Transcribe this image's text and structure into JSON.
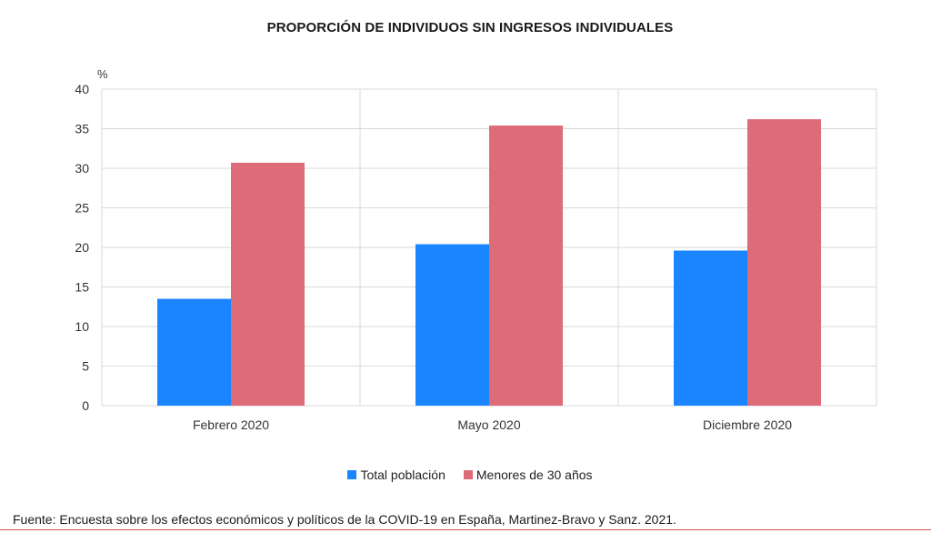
{
  "chart_data": {
    "type": "bar",
    "title": "PROPORCIÓN DE INDIVIDUOS SIN INGRESOS INDIVIDUALES",
    "y_unit": "%",
    "ylim": [
      0,
      40
    ],
    "yticks": [
      0,
      5,
      10,
      15,
      20,
      25,
      30,
      35,
      40
    ],
    "categories": [
      "Febrero 2020",
      "Mayo 2020",
      "Diciembre 2020"
    ],
    "series": [
      {
        "name": "Total población",
        "color": "#1a85ff",
        "values": [
          13.5,
          20.4,
          19.6
        ]
      },
      {
        "name": "Menores de 30 años",
        "color": "#de6b78",
        "values": [
          30.7,
          35.4,
          36.2
        ]
      }
    ],
    "grid": true,
    "legend_position": "bottom"
  },
  "source": "Fuente: Encuesta sobre los efectos económicos y políticos de la COVID-19 en España, Martinez-Bravo y Sanz. 2021."
}
